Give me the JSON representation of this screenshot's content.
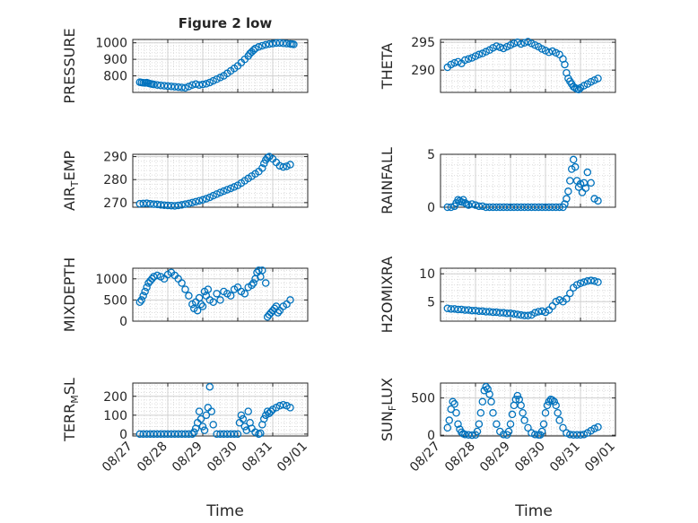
{
  "figure": {
    "title": "Figure 2 low",
    "xlabel": "Time",
    "marker_color": "#0072BD",
    "x_tick_labels": [
      "08/27",
      "08/28",
      "08/29",
      "08/30",
      "08/31",
      "09/01"
    ]
  },
  "chart_data": [
    {
      "type": "scatter",
      "ylabel": "PRESSURE",
      "ylim": [
        700,
        1020
      ],
      "yticks": [
        800,
        900,
        1000
      ],
      "xlim": [
        0,
        5
      ],
      "grid": true,
      "x": [
        0.2,
        0.25,
        0.3,
        0.35,
        0.4,
        0.45,
        0.5,
        0.55,
        0.6,
        0.7,
        0.8,
        0.9,
        1.0,
        1.1,
        1.2,
        1.3,
        1.4,
        1.5,
        1.6,
        1.7,
        1.8,
        1.9,
        2.0,
        2.1,
        2.2,
        2.3,
        2.4,
        2.5,
        2.6,
        2.7,
        2.8,
        2.9,
        3.0,
        3.1,
        3.2,
        3.3,
        3.35,
        3.4,
        3.45,
        3.5,
        3.6,
        3.7,
        3.8,
        3.9,
        4.0,
        4.1,
        4.2,
        4.3,
        4.4,
        4.5,
        4.55,
        4.6
      ],
      "values": [
        762,
        760,
        758,
        757,
        759,
        755,
        752,
        750,
        748,
        745,
        742,
        740,
        738,
        736,
        734,
        732,
        730,
        728,
        735,
        745,
        750,
        745,
        748,
        752,
        760,
        770,
        780,
        790,
        800,
        815,
        830,
        845,
        860,
        880,
        900,
        920,
        935,
        945,
        955,
        965,
        975,
        982,
        988,
        992,
        995,
        998,
        999,
        997,
        995,
        993,
        992,
        990
      ]
    },
    {
      "type": "scatter",
      "ylabel": "THETA",
      "ylim": [
        286,
        295.5
      ],
      "yticks": [
        290,
        295
      ],
      "xlim": [
        0,
        5
      ],
      "grid": true,
      "x": [
        0.2,
        0.3,
        0.4,
        0.5,
        0.6,
        0.7,
        0.8,
        0.9,
        1.0,
        1.1,
        1.2,
        1.3,
        1.4,
        1.5,
        1.6,
        1.7,
        1.8,
        1.9,
        2.0,
        2.1,
        2.2,
        2.3,
        2.4,
        2.5,
        2.6,
        2.7,
        2.8,
        2.9,
        3.0,
        3.1,
        3.2,
        3.3,
        3.4,
        3.5,
        3.55,
        3.6,
        3.65,
        3.7,
        3.75,
        3.8,
        3.85,
        3.9,
        3.95,
        4.0,
        4.1,
        4.2,
        4.3,
        4.4,
        4.5
      ],
      "values": [
        290.5,
        291,
        291.3,
        291.5,
        291.2,
        291.8,
        292,
        292.2,
        292.5,
        292.8,
        293,
        293.3,
        293.6,
        294,
        294.3,
        294.1,
        293.9,
        294.2,
        294.5,
        294.8,
        295,
        294.7,
        294.9,
        295.1,
        294.8,
        294.5,
        294.2,
        293.8,
        293.5,
        293.2,
        293.4,
        293.1,
        292.8,
        292,
        291,
        289.5,
        288.5,
        288,
        287.5,
        287,
        286.8,
        286.6,
        286.5,
        286.8,
        287.2,
        287.5,
        287.9,
        288.2,
        288.5
      ]
    },
    {
      "type": "scatter",
      "ylabel": "AIR_TEMP",
      "ylim": [
        268,
        291
      ],
      "yticks": [
        270,
        280,
        290
      ],
      "xlim": [
        0,
        5
      ],
      "grid": true,
      "x": [
        0.2,
        0.3,
        0.4,
        0.5,
        0.6,
        0.7,
        0.8,
        0.9,
        1.0,
        1.1,
        1.2,
        1.3,
        1.4,
        1.5,
        1.6,
        1.7,
        1.8,
        1.9,
        2.0,
        2.1,
        2.2,
        2.3,
        2.4,
        2.5,
        2.6,
        2.7,
        2.8,
        2.9,
        3.0,
        3.1,
        3.2,
        3.3,
        3.4,
        3.5,
        3.6,
        3.7,
        3.75,
        3.8,
        3.85,
        3.9,
        4.0,
        4.1,
        4.2,
        4.3,
        4.4,
        4.5
      ],
      "values": [
        269.5,
        269.6,
        269.7,
        269.5,
        269.3,
        269.2,
        269,
        268.9,
        268.8,
        268.7,
        268.6,
        268.8,
        269,
        269.3,
        269.6,
        270,
        270.4,
        270.8,
        271.2,
        271.7,
        272.3,
        273,
        273.7,
        274.4,
        275,
        275.6,
        276.2,
        276.8,
        277.5,
        278.5,
        279.5,
        280.5,
        281.5,
        282.5,
        283.5,
        285,
        287,
        288.5,
        289.5,
        290,
        289,
        287.5,
        286,
        285.5,
        285.8,
        286.5
      ]
    },
    {
      "type": "scatter",
      "ylabel": "RAINFALL",
      "ylim": [
        0,
        5
      ],
      "yticks": [
        0,
        5
      ],
      "xlim": [
        0,
        5
      ],
      "grid": true,
      "x": [
        0.2,
        0.3,
        0.4,
        0.45,
        0.5,
        0.55,
        0.6,
        0.65,
        0.7,
        0.75,
        0.8,
        0.9,
        1.0,
        1.1,
        1.2,
        1.3,
        1.4,
        1.5,
        1.6,
        1.7,
        1.8,
        1.9,
        2.0,
        2.1,
        2.2,
        2.3,
        2.4,
        2.5,
        2.6,
        2.7,
        2.8,
        2.9,
        3.0,
        3.1,
        3.2,
        3.3,
        3.4,
        3.5,
        3.55,
        3.6,
        3.65,
        3.7,
        3.75,
        3.8,
        3.85,
        3.9,
        3.95,
        4.0,
        4.05,
        4.1,
        4.15,
        4.2,
        4.3,
        4.4,
        4.5
      ],
      "values": [
        0,
        0,
        0.1,
        0.4,
        0.7,
        0.6,
        0.5,
        0.7,
        0.4,
        0.3,
        0.2,
        0.3,
        0.2,
        0.1,
        0.1,
        0,
        0,
        0,
        0,
        0,
        0,
        0,
        0,
        0,
        0,
        0,
        0,
        0,
        0,
        0,
        0,
        0,
        0,
        0,
        0,
        0,
        0,
        0,
        0.3,
        0.8,
        1.5,
        2.5,
        3.6,
        4.5,
        3.8,
        2.5,
        1.9,
        2.2,
        1.4,
        2.3,
        1.8,
        3.3,
        2.3,
        0.8,
        0.6
      ]
    },
    {
      "type": "scatter",
      "ylabel": "MIXDEPTH",
      "ylim": [
        0,
        1250
      ],
      "yticks": [
        0,
        500,
        1000
      ],
      "xlim": [
        0,
        5
      ],
      "grid": true,
      "x": [
        0.2,
        0.25,
        0.3,
        0.35,
        0.4,
        0.45,
        0.5,
        0.55,
        0.6,
        0.7,
        0.8,
        0.9,
        1.0,
        1.1,
        1.2,
        1.3,
        1.4,
        1.5,
        1.6,
        1.7,
        1.75,
        1.8,
        1.85,
        1.9,
        1.95,
        2.0,
        2.05,
        2.1,
        2.15,
        2.2,
        2.3,
        2.4,
        2.5,
        2.6,
        2.7,
        2.8,
        2.9,
        3.0,
        3.1,
        3.2,
        3.3,
        3.4,
        3.45,
        3.5,
        3.55,
        3.6,
        3.65,
        3.7,
        3.8,
        3.85,
        3.9,
        3.95,
        4.0,
        4.05,
        4.1,
        4.15,
        4.2,
        4.3,
        4.4,
        4.5
      ],
      "values": [
        450,
        500,
        600,
        700,
        800,
        900,
        950,
        1000,
        1050,
        1080,
        1050,
        1000,
        1100,
        1150,
        1080,
        1000,
        900,
        750,
        600,
        400,
        300,
        450,
        250,
        550,
        400,
        350,
        700,
        600,
        750,
        500,
        450,
        650,
        500,
        700,
        650,
        600,
        750,
        800,
        700,
        650,
        800,
        850,
        900,
        1000,
        1150,
        1200,
        1050,
        1200,
        900,
        100,
        150,
        200,
        250,
        300,
        350,
        200,
        250,
        350,
        400,
        500
      ]
    },
    {
      "type": "scatter",
      "ylabel": "H2OMIXRA",
      "ylim": [
        1.5,
        11
      ],
      "yticks": [
        5,
        10
      ],
      "xlim": [
        0,
        5
      ],
      "grid": true,
      "x": [
        0.2,
        0.3,
        0.4,
        0.5,
        0.6,
        0.7,
        0.8,
        0.9,
        1.0,
        1.1,
        1.2,
        1.3,
        1.4,
        1.5,
        1.6,
        1.7,
        1.8,
        1.9,
        2.0,
        2.1,
        2.2,
        2.3,
        2.4,
        2.5,
        2.6,
        2.7,
        2.8,
        2.9,
        3.0,
        3.1,
        3.2,
        3.3,
        3.4,
        3.5,
        3.6,
        3.7,
        3.8,
        3.9,
        4.0,
        4.1,
        4.2,
        4.3,
        4.4,
        4.5
      ],
      "values": [
        3.8,
        3.7,
        3.7,
        3.6,
        3.6,
        3.5,
        3.5,
        3.4,
        3.4,
        3.3,
        3.3,
        3.2,
        3.2,
        3.1,
        3.1,
        3.0,
        3.0,
        2.9,
        2.9,
        2.8,
        2.7,
        2.6,
        2.5,
        2.5,
        2.6,
        3.0,
        3.2,
        3.3,
        3.1,
        3.5,
        4.2,
        5.0,
        5.3,
        5.0,
        5.5,
        6.5,
        7.5,
        8.0,
        8.3,
        8.5,
        8.7,
        8.8,
        8.7,
        8.5
      ]
    },
    {
      "type": "scatter",
      "ylabel": "TERR_MSL",
      "ylim": [
        -10,
        270
      ],
      "yticks": [
        0,
        100,
        200
      ],
      "xlim": [
        0,
        5
      ],
      "grid": true,
      "x": [
        0.2,
        0.3,
        0.4,
        0.5,
        0.6,
        0.7,
        0.8,
        0.9,
        1.0,
        1.1,
        1.2,
        1.3,
        1.4,
        1.5,
        1.6,
        1.7,
        1.75,
        1.8,
        1.85,
        1.9,
        1.95,
        2.0,
        2.05,
        2.1,
        2.15,
        2.2,
        2.25,
        2.3,
        2.4,
        2.5,
        2.6,
        2.7,
        2.8,
        2.9,
        3.0,
        3.05,
        3.1,
        3.15,
        3.2,
        3.25,
        3.3,
        3.35,
        3.4,
        3.5,
        3.6,
        3.65,
        3.7,
        3.75,
        3.8,
        3.85,
        3.9,
        3.95,
        4.0,
        4.1,
        4.2,
        4.3,
        4.4,
        4.5
      ],
      "values": [
        0,
        0,
        0,
        0,
        0,
        0,
        0,
        0,
        0,
        0,
        0,
        0,
        0,
        0,
        0,
        0,
        10,
        30,
        60,
        120,
        80,
        40,
        20,
        100,
        140,
        250,
        120,
        50,
        0,
        0,
        0,
        0,
        0,
        0,
        0,
        60,
        100,
        80,
        40,
        20,
        120,
        60,
        30,
        10,
        0,
        5,
        50,
        80,
        100,
        120,
        110,
        120,
        130,
        140,
        150,
        155,
        150,
        140
      ]
    },
    {
      "type": "scatter",
      "ylabel": "SUN_FLUX",
      "ylim": [
        -10,
        700
      ],
      "yticks": [
        0,
        500
      ],
      "xlim": [
        0,
        5
      ],
      "grid": true,
      "x": [
        0.2,
        0.25,
        0.3,
        0.35,
        0.4,
        0.45,
        0.5,
        0.55,
        0.6,
        0.65,
        0.7,
        0.8,
        0.9,
        1.0,
        1.05,
        1.1,
        1.15,
        1.2,
        1.25,
        1.3,
        1.35,
        1.4,
        1.45,
        1.5,
        1.6,
        1.7,
        1.8,
        1.9,
        1.95,
        2.0,
        2.05,
        2.1,
        2.15,
        2.2,
        2.25,
        2.3,
        2.35,
        2.4,
        2.5,
        2.6,
        2.7,
        2.8,
        2.85,
        2.9,
        2.95,
        3.0,
        3.05,
        3.1,
        3.15,
        3.2,
        3.25,
        3.3,
        3.35,
        3.4,
        3.5,
        3.6,
        3.7,
        3.8,
        3.9,
        4.0,
        4.1,
        4.2,
        4.3,
        4.4,
        4.5
      ],
      "values": [
        100,
        200,
        350,
        450,
        420,
        300,
        150,
        80,
        40,
        20,
        10,
        5,
        0,
        5,
        50,
        150,
        300,
        450,
        600,
        650,
        620,
        550,
        450,
        300,
        150,
        50,
        10,
        5,
        50,
        150,
        280,
        400,
        480,
        530,
        480,
        400,
        300,
        200,
        100,
        30,
        10,
        5,
        5,
        50,
        150,
        300,
        400,
        450,
        480,
        470,
        450,
        400,
        300,
        200,
        100,
        30,
        10,
        5,
        5,
        5,
        10,
        30,
        60,
        90,
        110
      ]
    }
  ]
}
